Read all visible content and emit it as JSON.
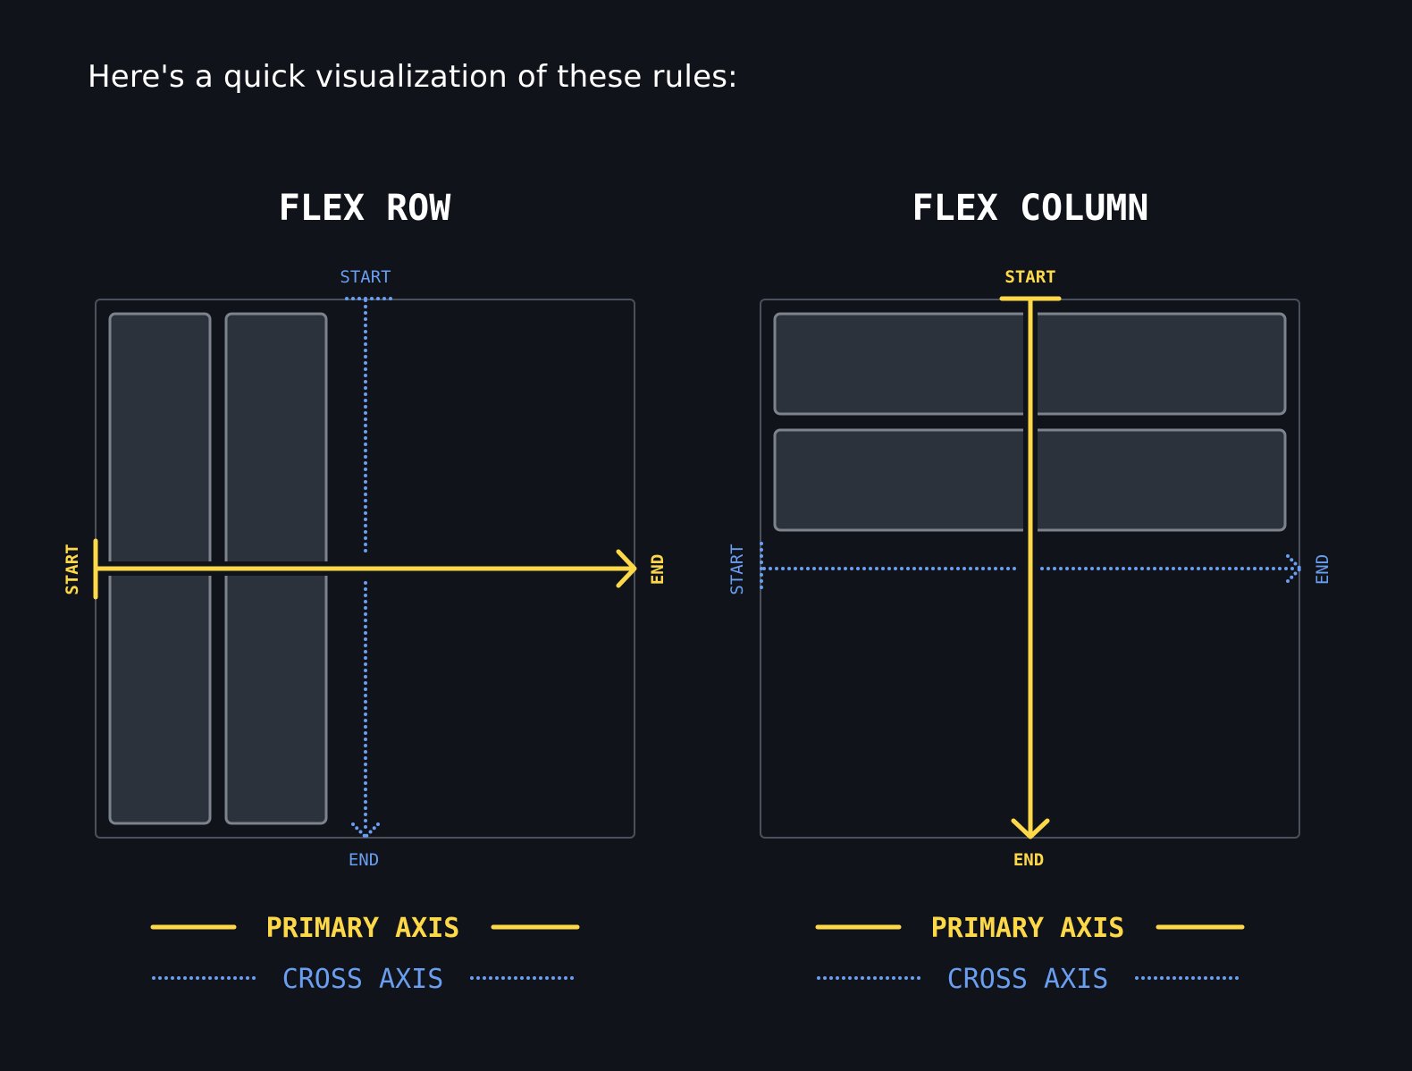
{
  "intro_text": "Here's a quick visualization of these rules:",
  "colors": {
    "background": "#10131a",
    "primary": "#fdd94a",
    "cross": "#6a9ef0",
    "box_border": "#4b515c",
    "item_fill": "#2c323c",
    "item_border": "#7d838d",
    "title": "#ffffff"
  },
  "flex_row": {
    "title": "FLEX ROW",
    "primary_start": "START",
    "primary_end": "END",
    "cross_start": "START",
    "cross_end": "END"
  },
  "flex_column": {
    "title": "FLEX COLUMN",
    "primary_start": "START",
    "primary_end": "END",
    "cross_start": "START",
    "cross_end": "END"
  },
  "legend": {
    "primary_label": "PRIMARY AXIS",
    "cross_label": "CROSS AXIS"
  }
}
